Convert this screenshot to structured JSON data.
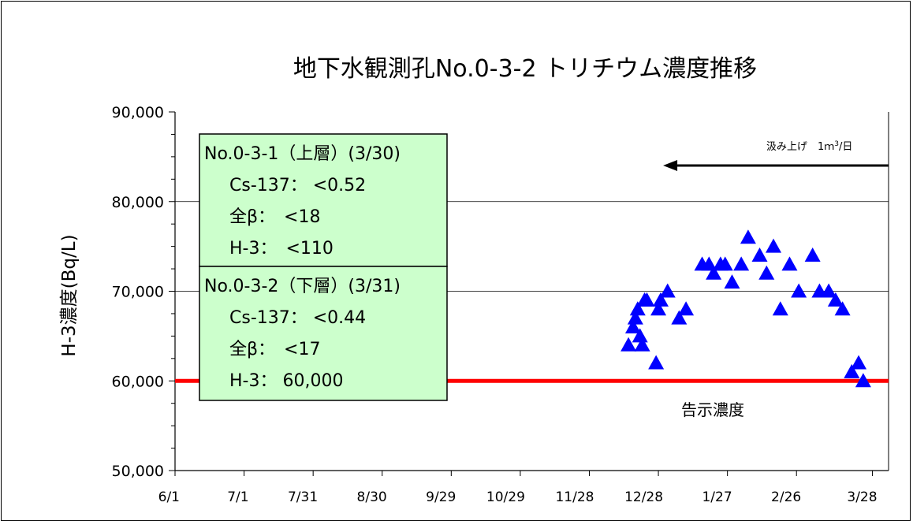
{
  "chart_data": {
    "type": "scatter",
    "title": "地下水観測孔No.0-3-2 トリチウム濃度推移",
    "ylabel": "H-3濃度(Bq/L)",
    "ylim": [
      50000,
      90000
    ],
    "yticks": [
      {
        "value": 50000,
        "label": "50,000"
      },
      {
        "value": 60000,
        "label": "60,000"
      },
      {
        "value": 70000,
        "label": "70,000"
      },
      {
        "value": 80000,
        "label": "80,000"
      },
      {
        "value": 90000,
        "label": "90,000"
      }
    ],
    "xticks": [
      "6/1",
      "7/1",
      "7/31",
      "8/30",
      "9/29",
      "10/29",
      "11/28",
      "12/28",
      "1/27",
      "2/26",
      "3/28"
    ],
    "xlim": [
      "6/1",
      "4/7"
    ],
    "gridlines_y": [
      70000,
      80000
    ],
    "series": [
      {
        "marker": "triangle",
        "color": "#0000ff",
        "points": [
          {
            "x": "12/15",
            "y": 64000
          },
          {
            "x": "12/17",
            "y": 66000
          },
          {
            "x": "12/18",
            "y": 67000
          },
          {
            "x": "12/19",
            "y": 68000
          },
          {
            "x": "12/20",
            "y": 65000
          },
          {
            "x": "12/21",
            "y": 64000
          },
          {
            "x": "12/22",
            "y": 69000
          },
          {
            "x": "12/23",
            "y": 69000
          },
          {
            "x": "12/27",
            "y": 62000
          },
          {
            "x": "12/28",
            "y": 68000
          },
          {
            "x": "12/29",
            "y": 69000
          },
          {
            "x": "1/1",
            "y": 70000
          },
          {
            "x": "1/6",
            "y": 67000
          },
          {
            "x": "1/9",
            "y": 68000
          },
          {
            "x": "1/16",
            "y": 73000
          },
          {
            "x": "1/19",
            "y": 73000
          },
          {
            "x": "1/21",
            "y": 72000
          },
          {
            "x": "1/24",
            "y": 73000
          },
          {
            "x": "1/26",
            "y": 73000
          },
          {
            "x": "1/29",
            "y": 71000
          },
          {
            "x": "2/2",
            "y": 73000
          },
          {
            "x": "2/5",
            "y": 76000
          },
          {
            "x": "2/10",
            "y": 74000
          },
          {
            "x": "2/13",
            "y": 72000
          },
          {
            "x": "2/16",
            "y": 75000
          },
          {
            "x": "2/19",
            "y": 68000
          },
          {
            "x": "2/23",
            "y": 73000
          },
          {
            "x": "2/27",
            "y": 70000
          },
          {
            "x": "3/2",
            "y": 74000
          },
          {
            "x": "3/5",
            "y": 70000
          },
          {
            "x": "3/9",
            "y": 70000
          },
          {
            "x": "3/12",
            "y": 69000
          },
          {
            "x": "3/15",
            "y": 68000
          },
          {
            "x": "3/19",
            "y": 61000
          },
          {
            "x": "3/22",
            "y": 62000
          },
          {
            "x": "3/24",
            "y": 60000
          }
        ]
      }
    ],
    "limit_line": {
      "value": 60000,
      "label": "告示濃度",
      "color": "#ff0000"
    },
    "arrow_note": {
      "text": "汲み上げ　1ｍ",
      "superscript": "3",
      "suffix": "/日",
      "from": "4/7",
      "to": "12/28"
    },
    "info_boxes": [
      {
        "lines": [
          "No.0-3-1（上層）(3/30)",
          "Cs-137： <0.52",
          "全β：　<18",
          "H-3：　<110"
        ]
      },
      {
        "lines": [
          "No.0-3-2（下層）(3/31)",
          "Cs-137： <0.44",
          "全β：　<17",
          "H-3： 60,000"
        ]
      }
    ],
    "colors": {
      "box_fill": "#ccffcc",
      "box_border": "#000000",
      "grid": "#000000"
    }
  }
}
